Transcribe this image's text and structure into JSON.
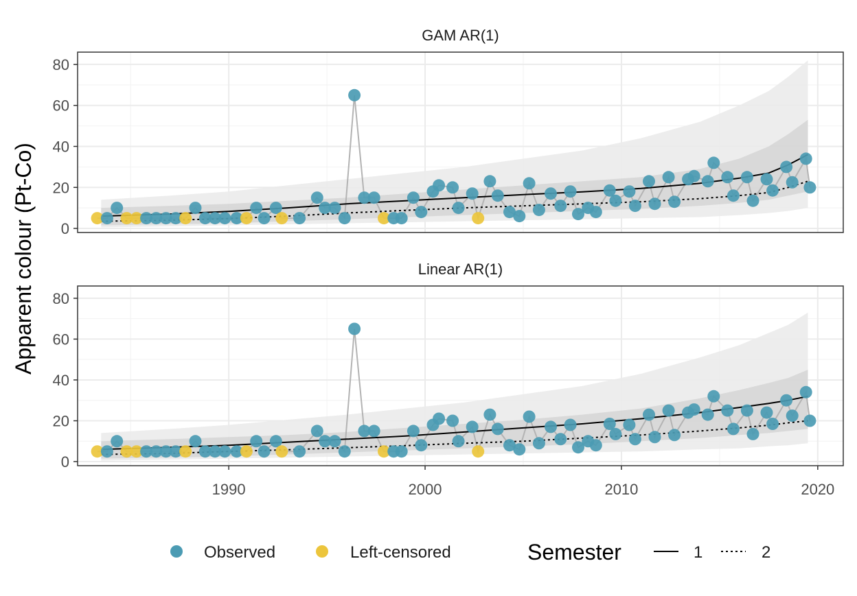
{
  "chart_data": {
    "type": "scatter",
    "ylabel": "Apparent colour (Pt-Co)",
    "xlabel": "",
    "xlim": [
      1982.3,
      2021.3
    ],
    "ylim": [
      -2,
      86
    ],
    "x_ticks": [
      1990,
      2000,
      2010,
      2020
    ],
    "y_ticks": [
      0,
      20,
      40,
      60,
      80
    ],
    "grid": true,
    "legend_position": "bottom",
    "colors": {
      "observed": "#4b9bb3",
      "left_censored": "#ecc53c",
      "connector": "#b3b3b3",
      "ribbon_outer": "#ebebeb",
      "ribbon_inner": "#d6d6d6",
      "fit": "#000000"
    },
    "legend": {
      "points": [
        {
          "key": "observed",
          "label": "Observed"
        },
        {
          "key": "left_censored",
          "label": "Left-censored"
        }
      ],
      "semester_title": "Semester",
      "semester_items": [
        {
          "label": "1",
          "style": "solid"
        },
        {
          "label": "2",
          "style": "dotted"
        }
      ]
    },
    "observations": [
      {
        "x": 1983.3,
        "y": 5,
        "censored": true
      },
      {
        "x": 1983.8,
        "y": 5,
        "censored": false
      },
      {
        "x": 1984.3,
        "y": 10,
        "censored": false
      },
      {
        "x": 1984.8,
        "y": 5,
        "censored": true
      },
      {
        "x": 1985.3,
        "y": 5,
        "censored": true
      },
      {
        "x": 1985.8,
        "y": 5,
        "censored": false
      },
      {
        "x": 1986.3,
        "y": 5,
        "censored": false
      },
      {
        "x": 1986.8,
        "y": 5,
        "censored": false
      },
      {
        "x": 1987.3,
        "y": 5,
        "censored": false
      },
      {
        "x": 1987.8,
        "y": 5,
        "censored": true
      },
      {
        "x": 1988.3,
        "y": 10,
        "censored": false
      },
      {
        "x": 1988.8,
        "y": 5,
        "censored": false
      },
      {
        "x": 1989.3,
        "y": 5,
        "censored": false
      },
      {
        "x": 1989.8,
        "y": 5,
        "censored": false
      },
      {
        "x": 1990.4,
        "y": 5,
        "censored": false
      },
      {
        "x": 1990.9,
        "y": 5,
        "censored": true
      },
      {
        "x": 1991.4,
        "y": 10,
        "censored": false
      },
      {
        "x": 1991.8,
        "y": 5,
        "censored": false
      },
      {
        "x": 1992.4,
        "y": 10,
        "censored": false
      },
      {
        "x": 1992.7,
        "y": 5,
        "censored": true
      },
      {
        "x": 1993.6,
        "y": 5,
        "censored": false
      },
      {
        "x": 1994.5,
        "y": 15,
        "censored": false
      },
      {
        "x": 1994.9,
        "y": 10,
        "censored": false
      },
      {
        "x": 1995.4,
        "y": 10,
        "censored": false
      },
      {
        "x": 1995.9,
        "y": 5,
        "censored": false
      },
      {
        "x": 1996.4,
        "y": 65,
        "censored": false
      },
      {
        "x": 1996.9,
        "y": 15,
        "censored": false
      },
      {
        "x": 1997.4,
        "y": 15,
        "censored": false
      },
      {
        "x": 1997.9,
        "y": 5,
        "censored": true
      },
      {
        "x": 1998.4,
        "y": 5,
        "censored": false
      },
      {
        "x": 1998.8,
        "y": 5,
        "censored": false
      },
      {
        "x": 1999.4,
        "y": 15,
        "censored": false
      },
      {
        "x": 1999.8,
        "y": 8,
        "censored": false
      },
      {
        "x": 2000.4,
        "y": 18,
        "censored": false
      },
      {
        "x": 2000.7,
        "y": 21,
        "censored": false
      },
      {
        "x": 2001.4,
        "y": 20,
        "censored": false
      },
      {
        "x": 2001.7,
        "y": 10,
        "censored": false
      },
      {
        "x": 2002.4,
        "y": 17,
        "censored": false
      },
      {
        "x": 2002.7,
        "y": 5,
        "censored": true
      },
      {
        "x": 2003.3,
        "y": 23,
        "censored": false
      },
      {
        "x": 2003.7,
        "y": 16,
        "censored": false
      },
      {
        "x": 2004.3,
        "y": 8,
        "censored": false
      },
      {
        "x": 2004.8,
        "y": 6,
        "censored": false
      },
      {
        "x": 2005.3,
        "y": 22,
        "censored": false
      },
      {
        "x": 2005.8,
        "y": 9,
        "censored": false
      },
      {
        "x": 2006.4,
        "y": 17,
        "censored": false
      },
      {
        "x": 2006.9,
        "y": 11,
        "censored": false
      },
      {
        "x": 2007.4,
        "y": 18,
        "censored": false
      },
      {
        "x": 2007.8,
        "y": 7,
        "censored": false
      },
      {
        "x": 2008.3,
        "y": 10,
        "censored": false
      },
      {
        "x": 2008.7,
        "y": 8,
        "censored": false
      },
      {
        "x": 2009.4,
        "y": 18.5,
        "censored": false
      },
      {
        "x": 2009.7,
        "y": 13.5,
        "censored": false
      },
      {
        "x": 2010.4,
        "y": 18,
        "censored": false
      },
      {
        "x": 2010.7,
        "y": 11,
        "censored": false
      },
      {
        "x": 2011.4,
        "y": 23,
        "censored": false
      },
      {
        "x": 2011.7,
        "y": 12,
        "censored": false
      },
      {
        "x": 2012.4,
        "y": 25,
        "censored": false
      },
      {
        "x": 2012.7,
        "y": 13,
        "censored": false
      },
      {
        "x": 2013.4,
        "y": 24,
        "censored": false
      },
      {
        "x": 2013.7,
        "y": 25.5,
        "censored": false
      },
      {
        "x": 2014.4,
        "y": 23,
        "censored": false
      },
      {
        "x": 2014.7,
        "y": 32,
        "censored": false
      },
      {
        "x": 2015.4,
        "y": 25,
        "censored": false
      },
      {
        "x": 2015.7,
        "y": 16,
        "censored": false
      },
      {
        "x": 2016.4,
        "y": 25,
        "censored": false
      },
      {
        "x": 2016.7,
        "y": 13.5,
        "censored": false
      },
      {
        "x": 2017.4,
        "y": 24,
        "censored": false
      },
      {
        "x": 2017.7,
        "y": 18.5,
        "censored": false
      },
      {
        "x": 2018.4,
        "y": 30,
        "censored": false
      },
      {
        "x": 2018.7,
        "y": 22.5,
        "censored": false
      },
      {
        "x": 2019.4,
        "y": 34,
        "censored": false
      },
      {
        "x": 2019.6,
        "y": 20,
        "censored": false
      }
    ],
    "panels": [
      {
        "title": "GAM AR(1)",
        "fit": {
          "x": [
            1983.5,
            1987,
            1990,
            1993,
            1996,
            1999,
            2002,
            2005,
            2008,
            2011,
            2014,
            2016,
            2017.5,
            2018.5,
            2019.5
          ],
          "semester_1": [
            6,
            7,
            8.3,
            10,
            12,
            13.5,
            15,
            16.5,
            17.8,
            19.5,
            22,
            24.5,
            27,
            31,
            36
          ],
          "semester_2": [
            3.5,
            4,
            4.8,
            6,
            7.5,
            8.8,
            10,
            11,
            12,
            13,
            14.5,
            16,
            17.5,
            20,
            23
          ]
        },
        "ribbon_outer": {
          "x": [
            1983.5,
            1987,
            1990,
            1993,
            1996,
            1999,
            2002,
            2005,
            2008,
            2011,
            2014,
            2016,
            2017.5,
            2018.5,
            2019.5
          ],
          "lower": [
            0.5,
            1,
            1.5,
            2,
            2.5,
            3,
            3.5,
            4,
            4.5,
            5,
            5.5,
            6.5,
            7.5,
            8.5,
            10
          ],
          "upper": [
            14,
            16,
            18,
            21,
            24,
            27,
            30,
            34,
            38,
            44,
            52,
            60,
            67,
            74,
            82
          ]
        },
        "ribbon_inner": {
          "x": [
            1983.5,
            1987,
            1990,
            1993,
            1996,
            1999,
            2002,
            2005,
            2008,
            2011,
            2014,
            2016,
            2017.5,
            2018.5,
            2019.5
          ],
          "lower": [
            1.5,
            2,
            2.5,
            3.5,
            4.5,
            5.5,
            6.5,
            7.5,
            8.5,
            9.5,
            11,
            12.5,
            14,
            16,
            18
          ],
          "upper": [
            10,
            11,
            12,
            13.5,
            15,
            17,
            19,
            21,
            23,
            25,
            29,
            34,
            40,
            46,
            53
          ]
        }
      },
      {
        "title": "Linear AR(1)",
        "fit": {
          "x": [
            1983.5,
            1987,
            1990,
            1993,
            1996,
            1999,
            2002,
            2005,
            2008,
            2011,
            2014,
            2016,
            2017.5,
            2018.5,
            2019.5
          ],
          "semester_1": [
            6,
            7,
            8,
            9.5,
            11,
            12.5,
            14.5,
            16.5,
            18.5,
            21,
            24,
            26.5,
            28.5,
            30,
            32
          ],
          "semester_2": [
            3.5,
            4,
            5,
            5.8,
            6.8,
            7.8,
            9,
            10,
            11.5,
            13,
            15,
            16.5,
            17.8,
            19,
            20
          ]
        },
        "ribbon_outer": {
          "x": [
            1983.5,
            1987,
            1990,
            1993,
            1996,
            1999,
            2002,
            2005,
            2008,
            2011,
            2014,
            2016,
            2017.5,
            2018.5,
            2019.5
          ],
          "lower": [
            0.5,
            1,
            1.5,
            2,
            2.5,
            3,
            3.5,
            4,
            4.5,
            5,
            6,
            6.5,
            7.5,
            8,
            9
          ],
          "upper": [
            14,
            16,
            18,
            20.5,
            23,
            26,
            29,
            33,
            37,
            43,
            51,
            57,
            63,
            67,
            73
          ]
        },
        "ribbon_inner": {
          "x": [
            1983.5,
            1987,
            1990,
            1993,
            1996,
            1999,
            2002,
            2005,
            2008,
            2011,
            2014,
            2016,
            2017.5,
            2018.5,
            2019.5
          ],
          "lower": [
            1.5,
            2,
            2.5,
            3.5,
            4.5,
            5.5,
            6.5,
            7.5,
            8.5,
            10,
            11.5,
            13,
            14,
            15,
            16
          ],
          "upper": [
            10,
            11,
            12,
            13,
            14.5,
            16.5,
            18.5,
            20.5,
            23,
            26,
            31,
            35,
            38.5,
            41,
            45
          ]
        }
      }
    ]
  }
}
